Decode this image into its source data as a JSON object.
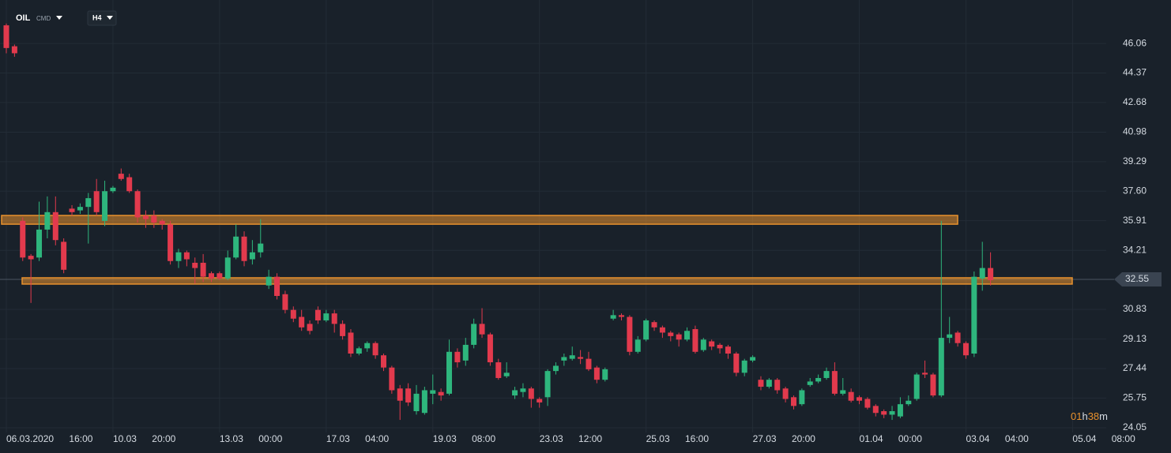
{
  "chart_data": {
    "type": "candlestick",
    "symbol": "OIL",
    "symbol_group": "CMD",
    "timeframe": "H4",
    "up_color": "#2eb67d",
    "down_color": "#e23a4d",
    "zone_color": "#e8912d",
    "grid": true,
    "ylim": [
      23.78,
      48.55
    ],
    "yticks": [
      46.06,
      44.37,
      42.68,
      40.98,
      39.29,
      {
        "value": 37.6,
        "label": "37.60"
      },
      35.91,
      34.21,
      30.83,
      29.13,
      27.44,
      25.75,
      24.05
    ],
    "last_price": 32.55,
    "countdown": [
      "01",
      "h",
      "38",
      "m"
    ],
    "zones": [
      {
        "high": 36.21,
        "low": 35.71
      },
      {
        "high": 32.64,
        "low": 32.28
      }
    ],
    "categories": [
      "06.03.2020 16:00",
      null,
      null,
      null,
      null,
      null,
      null,
      null,
      null,
      null,
      null,
      null,
      null,
      "10.03 20:00",
      null,
      null,
      null,
      null,
      null,
      null,
      null,
      null,
      null,
      null,
      null,
      null,
      "13.03 00:00",
      null,
      null,
      null,
      null,
      null,
      null,
      null,
      null,
      null,
      null,
      null,
      null,
      "17.03 04:00",
      null,
      null,
      null,
      null,
      null,
      null,
      null,
      null,
      null,
      null,
      null,
      null,
      "19.03 08:00",
      null,
      null,
      null,
      null,
      null,
      null,
      null,
      null,
      null,
      null,
      null,
      null,
      "23.03 12:00",
      null,
      null,
      null,
      null,
      null,
      null,
      null,
      null,
      null,
      null,
      null,
      null,
      "25.03 16:00",
      null,
      null,
      null,
      null,
      null,
      null,
      null,
      null,
      null,
      null,
      null,
      null,
      "27.03 20:00",
      null,
      null,
      null,
      null,
      null,
      null,
      null,
      null,
      null,
      null,
      null,
      null,
      "01.04 00:00",
      null,
      null,
      null,
      null,
      null,
      null,
      null,
      null,
      null,
      null,
      null,
      null,
      "03.04 04:00",
      null,
      null,
      null,
      null,
      null,
      null,
      null,
      null,
      null,
      null,
      null,
      null,
      "05.04 08:00"
    ],
    "open": [
      47.1,
      45.9,
      35.9,
      33.9,
      33.8,
      35.4,
      36.4,
      34.7,
      36.6,
      36.5,
      36.7,
      37.6,
      35.9,
      37.6,
      38.6,
      38.4,
      37.6,
      36.2,
      36.2,
      35.9,
      35.7,
      33.6,
      34.1,
      33.5,
      33.5,
      32.9,
      32.9,
      32.6,
      33.8,
      35.0,
      33.7,
      34.1,
      32.2,
      32.7,
      31.7,
      30.8,
      30.4,
      30.0,
      30.8,
      30.2,
      30.6,
      30.0,
      29.5,
      28.3,
      28.6,
      28.9,
      28.2,
      27.5,
      26.3,
      26.3,
      25.0,
      24.9,
      26.0,
      26.1,
      26.0,
      28.4,
      27.9,
      28.8,
      30.0,
      29.4,
      27.8,
      27.0,
      25.9,
      26.1,
      26.3,
      25.7,
      25.8,
      27.3,
      27.9,
      28.0,
      28.1,
      28.0,
      27.5,
      26.8,
      30.3,
      30.5,
      30.4,
      28.4,
      29.1,
      30.1,
      29.8,
      29.5,
      29.4,
      29.1,
      29.7,
      28.5,
      29.0,
      28.8,
      28.7,
      28.3,
      27.2,
      27.9,
      26.8,
      26.4,
      26.8,
      26.3,
      25.8,
      25.4,
      26.5,
      26.7,
      26.9,
      27.3,
      26.0,
      26.1,
      25.8,
      25.7,
      25.3,
      25.0,
      24.8,
      24.7,
      25.4,
      25.7,
      27.2,
      27.1,
      25.9,
      29.2,
      29.5,
      28.9,
      28.3,
      32.6,
      33.2,
      null,
      null,
      null,
      null,
      null,
      null,
      null,
      null,
      null,
      null
    ],
    "high": [
      47.2,
      46.0,
      36.1,
      34.0,
      37.0,
      37.3,
      37.3,
      34.9,
      36.8,
      36.9,
      37.5,
      38.3,
      38.2,
      37.9,
      38.9,
      38.6,
      37.7,
      36.5,
      36.5,
      36.0,
      35.9,
      34.3,
      34.2,
      33.8,
      34.0,
      33.0,
      33.0,
      34.2,
      35.7,
      35.3,
      34.8,
      36.0,
      33.1,
      32.9,
      31.9,
      31.0,
      30.8,
      30.2,
      31.0,
      30.8,
      30.8,
      30.2,
      29.7,
      28.7,
      29.0,
      29.0,
      28.3,
      27.6,
      26.5,
      26.6,
      26.5,
      26.4,
      27.1,
      26.3,
      29.1,
      28.6,
      29.2,
      30.3,
      30.9,
      29.5,
      28.0,
      27.8,
      26.4,
      26.6,
      26.4,
      25.8,
      27.4,
      27.8,
      28.3,
      28.7,
      28.5,
      28.4,
      27.6,
      27.5,
      30.8,
      30.6,
      30.5,
      29.3,
      30.3,
      30.2,
      29.9,
      29.6,
      29.5,
      29.8,
      29.9,
      29.2,
      29.1,
      28.9,
      28.8,
      28.4,
      28.0,
      28.2,
      27.0,
      26.9,
      26.9,
      26.4,
      25.9,
      26.3,
      26.9,
      27.1,
      27.5,
      27.8,
      26.9,
      26.3,
      25.9,
      25.8,
      25.4,
      25.1,
      25.3,
      25.8,
      25.9,
      27.2,
      27.9,
      27.2,
      35.9,
      30.4,
      29.6,
      29.0,
      33.0,
      34.7,
      34.1,
      null,
      null,
      null,
      null,
      null,
      null,
      null,
      null,
      null,
      null
    ],
    "low": [
      45.5,
      45.3,
      33.6,
      31.2,
      33.6,
      34.9,
      34.5,
      32.9,
      36.2,
      36.3,
      34.6,
      36.2,
      35.6,
      37.5,
      38.2,
      37.5,
      35.8,
      35.5,
      35.5,
      35.4,
      33.4,
      33.2,
      33.3,
      32.3,
      32.4,
      32.4,
      32.5,
      32.5,
      33.7,
      33.3,
      33.4,
      33.8,
      32.0,
      31.4,
      30.6,
      30.1,
      29.6,
      29.4,
      30.0,
      30.1,
      29.5,
      29.1,
      28.1,
      28.2,
      28.4,
      28.0,
      27.3,
      26.0,
      24.5,
      25.3,
      24.8,
      24.8,
      25.4,
      25.6,
      25.9,
      27.5,
      27.6,
      28.6,
      29.2,
      27.6,
      26.8,
      26.9,
      25.7,
      25.8,
      25.2,
      25.2,
      25.3,
      27.1,
      27.6,
      27.9,
      27.7,
      27.3,
      26.6,
      26.7,
      30.2,
      30.2,
      28.2,
      28.3,
      29.0,
      29.6,
      29.2,
      29.0,
      28.7,
      29.0,
      28.3,
      28.4,
      28.5,
      28.3,
      28.0,
      27.0,
      27.0,
      27.8,
      26.2,
      26.3,
      26.0,
      25.5,
      25.1,
      25.3,
      26.4,
      26.6,
      26.8,
      25.9,
      25.9,
      25.5,
      25.4,
      25.1,
      24.7,
      24.6,
      24.5,
      24.6,
      25.3,
      25.6,
      26.9,
      25.8,
      25.8,
      28.9,
      28.7,
      28.0,
      28.1,
      31.9,
      32.2,
      null,
      null,
      null,
      null,
      null,
      null,
      null,
      null,
      null,
      null
    ],
    "close": [
      45.8,
      45.5,
      33.8,
      33.7,
      35.4,
      36.4,
      34.8,
      33.1,
      36.4,
      36.7,
      37.2,
      36.4,
      37.6,
      37.8,
      38.3,
      37.6,
      36.1,
      36.0,
      35.8,
      35.7,
      33.6,
      34.1,
      33.7,
      33.2,
      32.7,
      32.6,
      32.6,
      33.8,
      35.0,
      33.6,
      34.1,
      34.6,
      32.7,
      31.6,
      30.8,
      30.3,
      29.8,
      29.6,
      30.2,
      30.6,
      30.0,
      29.3,
      28.3,
      28.6,
      28.9,
      28.2,
      27.5,
      26.2,
      25.6,
      25.5,
      26.0,
      26.2,
      26.2,
      25.9,
      28.4,
      27.8,
      28.8,
      30.0,
      29.4,
      27.8,
      26.9,
      27.2,
      26.2,
      26.3,
      25.7,
      25.5,
      27.3,
      27.6,
      28.1,
      28.2,
      28.0,
      27.4,
      26.8,
      27.4,
      30.5,
      30.4,
      28.4,
      29.1,
      30.2,
      29.8,
      29.5,
      29.3,
      29.1,
      29.6,
      28.4,
      29.1,
      28.7,
      28.6,
      28.3,
      27.2,
      27.9,
      28.1,
      26.4,
      26.8,
      26.2,
      25.7,
      25.3,
      26.2,
      26.7,
      26.9,
      27.3,
      26.0,
      26.2,
      25.6,
      25.6,
      25.2,
      24.9,
      24.8,
      25.0,
      25.4,
      25.6,
      27.1,
      27.1,
      25.9,
      29.2,
      29.4,
      28.9,
      28.2,
      32.7,
      33.2,
      32.5,
      null,
      null,
      null,
      null,
      null,
      null,
      null,
      null,
      null,
      null
    ]
  }
}
